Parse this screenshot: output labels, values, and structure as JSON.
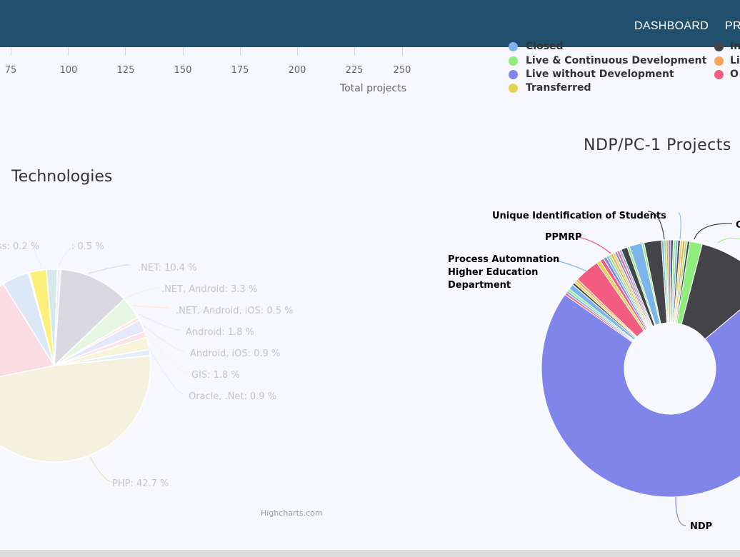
{
  "navbar": {
    "links": [
      "DASHBOARD",
      "PR"
    ]
  },
  "bar_axis": {
    "ticks": [
      "75",
      "100",
      "125",
      "150",
      "175",
      "200",
      "225",
      "250"
    ],
    "title": "Total projects"
  },
  "status_legend": {
    "items": [
      {
        "label": "Closed",
        "color": "#7cb5ec"
      },
      {
        "label": "In",
        "color": "#434348"
      },
      {
        "label": "Live & Continuous Development",
        "color": "#90ed7d"
      },
      {
        "label": "Li",
        "color": "#f7a35c"
      },
      {
        "label": "Live without Development",
        "color": "#8085e9"
      },
      {
        "label": "O",
        "color": "#f15c80"
      },
      {
        "label": "Transferred",
        "color": "#e4d354"
      }
    ]
  },
  "credit": "Highcharts.com",
  "chart_data": [
    {
      "type": "pie",
      "title": "Technologies",
      "slices": [
        {
          "label": "PHP",
          "value": 42.7,
          "display": "PHP: 42.7 %",
          "color": "#f4f1de"
        },
        {
          "label": "",
          "value": 17.0,
          "display": "",
          "color": "#f9dde3"
        },
        {
          "label": "",
          "value": 4.0,
          "display": "",
          "color": "#dde8f6"
        },
        {
          "label": "ss",
          "value": 0.2,
          "display": "ss: 0.2 %",
          "color": "#f0f0f0"
        },
        {
          "label": "",
          "value": 2.5,
          "display": "",
          "color": "#fdf07a"
        },
        {
          "label": "",
          "value": 1.6,
          "display": "",
          "color": "#d7e8ea"
        },
        {
          "label": "",
          "value": 0.5,
          "display": ": 0.5 %",
          "color": "#ececf4"
        },
        {
          "label": ".NET",
          "value": 10.4,
          "display": ".NET: 10.4 %",
          "color": "#d9d9df"
        },
        {
          "label": ".NET, Android",
          "value": 3.3,
          "display": ".NET, Android: 3.3 %",
          "color": "#e6f6e2"
        },
        {
          "label": ".NET, Android, iOS",
          "value": 0.5,
          "display": ".NET, Android, iOS: 0.5 %",
          "color": "#fde8dc"
        },
        {
          "label": "Android",
          "value": 1.8,
          "display": "Android: 1.8 %",
          "color": "#e6e7fb"
        },
        {
          "label": "Android, iOS",
          "value": 0.9,
          "display": "Android, iOS: 0.9 %",
          "color": "#fbe3e9"
        },
        {
          "label": "GIS",
          "value": 1.8,
          "display": "GIS: 1.8 %",
          "color": "#f7f4da"
        },
        {
          "label": "Oracle, .Net",
          "value": 0.9,
          "display": "Oracle, .Net: 0.9 %",
          "color": "#e3eef9"
        }
      ]
    },
    {
      "type": "pie",
      "title": "NDP/PC-1 Projects",
      "annotations": [
        "Unique Identification of Students",
        "PPMRP",
        "Process Automnation Higher Education Department",
        "NDP",
        "C"
      ],
      "slices": [
        {
          "label": "NDP",
          "value": 72.0,
          "color": "#8085e9"
        },
        {
          "label": "",
          "value": 0.3,
          "color": "#f15c80"
        },
        {
          "label": "",
          "value": 0.3,
          "color": "#7cb5ec"
        },
        {
          "label": "",
          "value": 0.3,
          "color": "#90ed7d"
        },
        {
          "label": "Process Automnation Higher Education Department",
          "value": 0.7,
          "color": "#7cb5ec"
        },
        {
          "label": "",
          "value": 0.3,
          "color": "#434348"
        },
        {
          "label": "",
          "value": 0.3,
          "color": "#e4d354"
        },
        {
          "label": "",
          "value": 0.3,
          "color": "#f7a35c"
        },
        {
          "label": "PPMRP",
          "value": 3.2,
          "color": "#f15c80"
        },
        {
          "label": "",
          "value": 0.5,
          "color": "#e4d354"
        },
        {
          "label": "",
          "value": 0.5,
          "color": "#f15c80"
        },
        {
          "label": "",
          "value": 0.4,
          "color": "#8085e9"
        },
        {
          "label": "",
          "value": 0.3,
          "color": "#7cb5ec"
        },
        {
          "label": "",
          "value": 0.3,
          "color": "#90ed7d"
        },
        {
          "label": "",
          "value": 0.3,
          "color": "#f7a35c"
        },
        {
          "label": "",
          "value": 0.3,
          "color": "#e4d354"
        },
        {
          "label": "",
          "value": 0.3,
          "color": "#8085e9"
        },
        {
          "label": "",
          "value": 0.3,
          "color": "#f15c80"
        },
        {
          "label": "",
          "value": 0.3,
          "color": "#7cb5ec"
        },
        {
          "label": "Unique Identification of Students",
          "value": 0.8,
          "color": "#434348"
        },
        {
          "label": "",
          "value": 0.3,
          "color": "#90ed7d"
        },
        {
          "label": "",
          "value": 1.6,
          "color": "#7cb5ec"
        },
        {
          "label": "",
          "value": 0.3,
          "color": "#90ed7d"
        },
        {
          "label": "C",
          "value": 2.2,
          "color": "#434348"
        },
        {
          "label": "",
          "value": 0.3,
          "color": "#7cb5ec"
        },
        {
          "label": "",
          "value": 0.3,
          "color": "#90ed7d"
        },
        {
          "label": "",
          "value": 0.3,
          "color": "#f7a35c"
        },
        {
          "label": "",
          "value": 0.3,
          "color": "#8085e9"
        },
        {
          "label": "",
          "value": 0.3,
          "color": "#434348"
        },
        {
          "label": "",
          "value": 0.3,
          "color": "#90ed7d"
        },
        {
          "label": "",
          "value": 0.3,
          "color": "#7cb5ec"
        },
        {
          "label": "",
          "value": 0.3,
          "color": "#434348"
        },
        {
          "label": "",
          "value": 0.3,
          "color": "#e4d354"
        },
        {
          "label": "",
          "value": 0.3,
          "color": "#f7a35c"
        },
        {
          "label": "",
          "value": 0.3,
          "color": "#90ed7d"
        },
        {
          "label": "",
          "value": 0.3,
          "color": "#434348"
        },
        {
          "label": "",
          "value": 1.6,
          "color": "#90ed7d"
        },
        {
          "label": "",
          "value": 10.0,
          "color": "#434348"
        }
      ]
    }
  ]
}
